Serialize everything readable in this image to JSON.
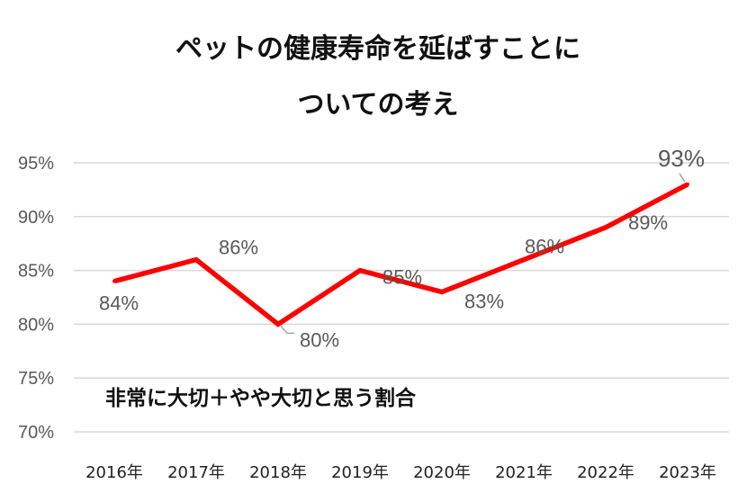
{
  "chart_data": {
    "type": "line",
    "title": [
      "ペットの健康寿命を延ばすことに",
      "ついての考え"
    ],
    "categories": [
      "2016年",
      "2017年",
      "2018年",
      "2019年",
      "2020年",
      "2021年",
      "2022年",
      "2023年"
    ],
    "series": [
      {
        "values": [
          84,
          86,
          80,
          85,
          83,
          86,
          89,
          93
        ],
        "color": "#ff0000"
      }
    ],
    "data_labels": [
      "84%",
      "86%",
      "80%",
      "85%",
      "83%",
      "86%",
      "89%",
      "93%"
    ],
    "highlight_label_color": "#ff0000",
    "y_ticks": [
      "70%",
      "75%",
      "80%",
      "85%",
      "90%",
      "95%"
    ],
    "ylim": [
      70,
      95
    ],
    "grid": true,
    "annotation": "非常に大切＋やや大切と思う割合"
  }
}
